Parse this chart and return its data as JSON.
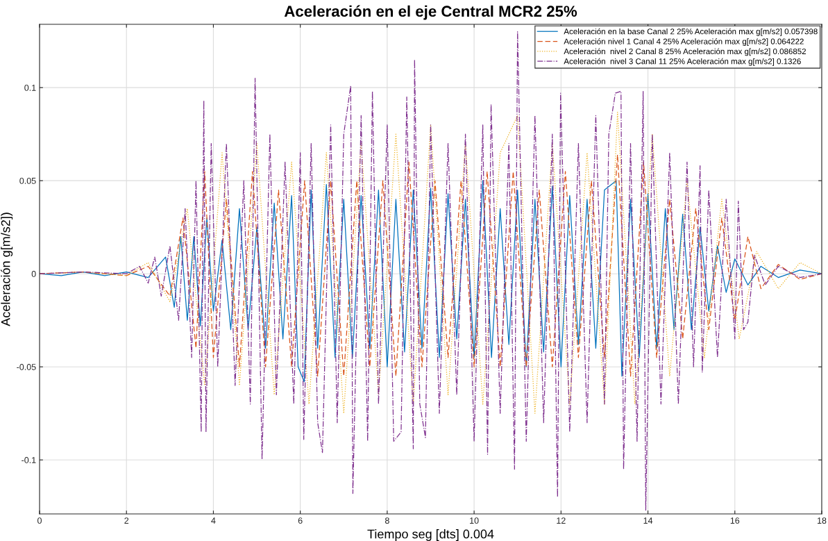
{
  "chart_data": {
    "type": "line",
    "title": "Aceleración en el eje Central MCR2 25%",
    "xlabel": "Tiempo seg [dts] 0.004",
    "ylabel": "Aceleración g[m/s2])",
    "xlim": [
      0,
      18
    ],
    "xticks": [
      0,
      2,
      4,
      6,
      8,
      10,
      12,
      14,
      16,
      18
    ],
    "ylim": [
      -0.129,
      0.134
    ],
    "yticks": [
      -0.1,
      -0.05,
      0,
      0.05,
      0.1
    ],
    "grid": true,
    "legend": "top right",
    "series": [
      {
        "name": "Aceleración en la base Canal 2 25% Aceleración max g[m/s2] 0.057398",
        "color": "#0072bd",
        "line_style": "solid",
        "x": [
          0,
          0.5,
          1,
          1.5,
          2,
          2.5,
          2.9,
          3.1,
          3.25,
          3.4,
          3.55,
          3.7,
          3.85,
          4.0,
          4.2,
          4.4,
          4.6,
          4.8,
          5.0,
          5.2,
          5.4,
          5.6,
          5.8,
          5.95,
          6.09,
          6.25,
          6.4,
          6.6,
          6.8,
          7.0,
          7.2,
          7.4,
          7.6,
          7.8,
          8.0,
          8.2,
          8.4,
          8.6,
          8.8,
          9.0,
          9.2,
          9.4,
          9.6,
          9.8,
          10.0,
          10.2,
          10.4,
          10.6,
          10.8,
          11.0,
          11.2,
          11.4,
          11.6,
          11.8,
          12.0,
          12.2,
          12.4,
          12.6,
          12.8,
          13.0,
          13.27,
          13.4,
          13.6,
          13.8,
          14.0,
          14.2,
          14.4,
          14.6,
          14.8,
          15.0,
          15.2,
          15.4,
          15.6,
          15.8,
          16.0,
          16.3,
          16.6,
          17.0,
          17.5,
          18
        ],
        "values": [
          0,
          -0.001,
          0.001,
          -0.001,
          0.001,
          -0.002,
          0.009,
          -0.018,
          0.02,
          -0.025,
          0.02,
          -0.028,
          0.03,
          -0.02,
          0.018,
          -0.03,
          0.035,
          -0.03,
          0.025,
          -0.04,
          0.038,
          -0.035,
          0.042,
          -0.05,
          -0.058,
          0.045,
          -0.04,
          0.048,
          -0.045,
          0.04,
          -0.045,
          0.042,
          -0.04,
          0.045,
          -0.05,
          0.04,
          -0.042,
          0.045,
          -0.04,
          0.046,
          -0.045,
          0.043,
          -0.035,
          0.04,
          -0.045,
          0.05,
          -0.045,
          0.035,
          -0.038,
          0.045,
          -0.05,
          0.04,
          -0.042,
          0.047,
          -0.05,
          0.042,
          -0.038,
          0.04,
          -0.04,
          0.045,
          0.05,
          -0.055,
          0.04,
          -0.045,
          0.043,
          -0.04,
          0.035,
          -0.03,
          0.032,
          -0.03,
          0.025,
          -0.02,
          0.015,
          -0.01,
          0.008,
          -0.006,
          0.004,
          -0.002,
          0.002,
          0
        ]
      },
      {
        "name": "Aceleración nivel 1 Canal 4 25% Aceleración max g[m/s2] 0.064222",
        "color": "#d95319",
        "line_style": "dashed",
        "x": [
          0,
          1,
          2,
          2.5,
          3.0,
          3.3,
          3.6,
          3.8,
          4.0,
          4.3,
          4.6,
          4.9,
          5.2,
          5.5,
          5.8,
          6.1,
          6.4,
          6.7,
          7.0,
          7.3,
          7.6,
          7.9,
          8.2,
          8.5,
          8.8,
          9.1,
          9.4,
          9.7,
          10.0,
          10.3,
          10.6,
          10.9,
          11.2,
          11.5,
          11.8,
          12.1,
          12.4,
          12.7,
          13.0,
          13.3,
          13.6,
          13.9,
          14.2,
          14.5,
          14.8,
          15.1,
          15.4,
          15.7,
          16.0,
          16.3,
          16.6,
          17.0,
          17.5,
          18
        ],
        "values": [
          0,
          0.001,
          -0.001,
          0.004,
          -0.012,
          0.03,
          -0.04,
          0.055,
          -0.045,
          0.04,
          -0.05,
          0.055,
          -0.05,
          0.045,
          -0.05,
          0.05,
          -0.055,
          0.05,
          -0.055,
          0.05,
          -0.05,
          0.05,
          -0.055,
          0.06,
          -0.05,
          0.05,
          -0.045,
          0.05,
          -0.05,
          0.055,
          -0.05,
          0.055,
          -0.05,
          0.045,
          -0.05,
          0.055,
          -0.045,
          0.05,
          -0.045,
          0.064,
          -0.055,
          0.06,
          -0.045,
          0.04,
          -0.035,
          0.035,
          -0.03,
          0.03,
          -0.025,
          0.02,
          -0.008,
          0.005,
          -0.003,
          0
        ]
      },
      {
        "name": "Aceleración  nivel 2 Canal 8 25% Aceleración max g[m/s2] 0.086852",
        "color": "#edb120",
        "line_style": "dotted",
        "x": [
          0,
          1,
          2,
          2.5,
          3.0,
          3.4,
          3.8,
          4.2,
          4.6,
          5.0,
          5.4,
          5.8,
          6.2,
          6.6,
          7.0,
          7.4,
          7.8,
          8.2,
          8.6,
          9.0,
          9.4,
          9.8,
          10.2,
          10.6,
          11.0,
          11.4,
          11.8,
          12.2,
          12.6,
          13.0,
          13.3,
          13.7,
          14.1,
          14.5,
          14.9,
          15.3,
          15.7,
          16.1,
          16.5,
          17.0,
          17.5,
          18
        ],
        "values": [
          0,
          0.001,
          -0.001,
          0.006,
          -0.015,
          0.035,
          -0.06,
          0.065,
          -0.06,
          0.07,
          -0.065,
          0.06,
          -0.07,
          0.065,
          -0.075,
          0.07,
          -0.065,
          0.075,
          -0.07,
          0.08,
          -0.065,
          0.07,
          -0.07,
          0.065,
          0.085,
          -0.075,
          0.07,
          -0.07,
          0.065,
          -0.07,
          0.0868,
          -0.07,
          0.075,
          -0.055,
          0.05,
          -0.045,
          0.04,
          -0.035,
          0.012,
          -0.008,
          0.006,
          0
        ]
      },
      {
        "name": "Aceleración  nivel 3 Canal 11 25% Aceleración max g[m/s2] 0.1326",
        "color": "#7e2f8e",
        "line_style": "dashdot",
        "x": [
          0,
          1,
          2,
          2.3,
          2.5,
          2.65,
          2.8,
          3.0,
          3.2,
          3.35,
          3.5,
          3.6,
          3.72,
          3.78,
          3.83,
          3.95,
          4.1,
          4.3,
          4.5,
          4.7,
          4.85,
          4.96,
          5.12,
          5.3,
          5.45,
          5.65,
          5.85,
          6.0,
          6.08,
          6.25,
          6.4,
          6.51,
          6.7,
          6.85,
          7.0,
          7.16,
          7.21,
          7.4,
          7.55,
          7.66,
          7.8,
          8.0,
          8.15,
          8.32,
          8.45,
          8.6,
          8.63,
          8.75,
          8.88,
          9.0,
          9.2,
          9.4,
          9.6,
          9.8,
          10.0,
          10.2,
          10.31,
          10.39,
          10.6,
          10.8,
          10.93,
          11.0,
          11.2,
          11.4,
          11.6,
          11.8,
          11.92,
          11.99,
          12.2,
          12.4,
          12.6,
          12.8,
          13.0,
          13.1,
          13.25,
          13.38,
          13.44,
          13.6,
          13.75,
          13.89,
          13.95,
          14.1,
          14.3,
          14.5,
          14.7,
          14.9,
          15.05,
          15.2,
          15.25,
          15.4,
          15.6,
          15.8,
          16.0,
          16.08,
          16.2,
          16.3,
          16.45,
          16.7,
          17.0,
          17.5,
          18
        ],
        "values": [
          0,
          0.001,
          0,
          0.004,
          -0.005,
          0.009,
          -0.012,
          0.015,
          -0.025,
          0.035,
          -0.045,
          0.05,
          -0.085,
          0.093,
          -0.085,
          0.07,
          -0.05,
          0.07,
          -0.06,
          0.05,
          -0.07,
          0.105,
          -0.0996,
          0.075,
          -0.065,
          0.06,
          -0.07,
          0.065,
          -0.089,
          0.07,
          -0.08,
          -0.096,
          0.08,
          -0.08,
          0.075,
          0.101,
          -0.118,
          0.085,
          -0.09,
          0.098,
          -0.07,
          0.08,
          -0.09,
          -0.085,
          0.095,
          -0.094,
          0.115,
          -0.07,
          -0.088,
          0.08,
          -0.075,
          0.07,
          -0.065,
          0.075,
          -0.09,
          0.08,
          -0.097,
          0.091,
          -0.075,
          0.07,
          -0.105,
          0.13,
          -0.09,
          0.085,
          -0.08,
          0.075,
          -0.12,
          0.097,
          -0.085,
          0.07,
          -0.08,
          0.085,
          -0.07,
          0.075,
          0.097,
          0.098,
          -0.105,
          0.07,
          -0.09,
          0.098,
          -0.127,
          0.075,
          -0.07,
          0.065,
          -0.07,
          0.06,
          -0.05,
          0.058,
          -0.053,
          0.045,
          -0.045,
          0.04,
          -0.035,
          0.039,
          -0.03,
          -0.026,
          0.01,
          -0.006,
          0.004,
          -0.002,
          0
        ]
      }
    ]
  }
}
